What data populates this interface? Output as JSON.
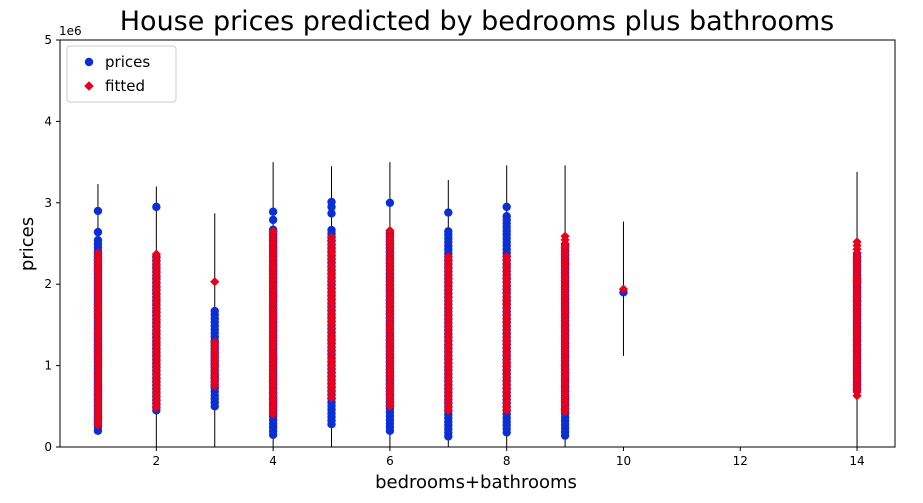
{
  "chart_data": {
    "type": "scatter",
    "title": "House prices predicted by bedrooms plus bathrooms",
    "xlabel": "bedrooms+bathrooms",
    "ylabel": "prices",
    "xlim": [
      0.35,
      14.65
    ],
    "ylim": [
      0,
      5000000
    ],
    "y_offset_label": "1e6",
    "x_ticks": [
      2,
      4,
      6,
      8,
      10,
      12,
      14
    ],
    "y_ticks": [
      0,
      1,
      2,
      3,
      4,
      5
    ],
    "y_tick_scale": 1000000,
    "grid": false,
    "legend": {
      "position": "top-left",
      "entries": [
        "prices",
        "fitted"
      ]
    },
    "colors": {
      "prices": "#0a2fd6",
      "fitted": "#e8001c",
      "lines": "#000000"
    },
    "vlines": [
      {
        "x": 1,
        "y0": 150000,
        "y1": 3230000
      },
      {
        "x": 2,
        "y0": 0,
        "y1": 3200000
      },
      {
        "x": 3,
        "y0": 0,
        "y1": 2870000
      },
      {
        "x": 4,
        "y0": 0,
        "y1": 3500000
      },
      {
        "x": 5,
        "y0": 0,
        "y1": 3450000
      },
      {
        "x": 6,
        "y0": 0,
        "y1": 3500000
      },
      {
        "x": 7,
        "y0": 0,
        "y1": 3280000
      },
      {
        "x": 8,
        "y0": 0,
        "y1": 3460000
      },
      {
        "x": 9,
        "y0": 0,
        "y1": 3460000
      },
      {
        "x": 10,
        "y0": 1120000,
        "y1": 2770000
      },
      {
        "x": 14,
        "y0": 0,
        "y1": 3380000
      }
    ],
    "series": [
      {
        "name": "prices",
        "marker": "circle",
        "clusters": [
          {
            "x": 1,
            "min": 200000,
            "max": 2550000,
            "extra": [
              2640000,
              2900000
            ]
          },
          {
            "x": 2,
            "min": 450000,
            "max": 2350000,
            "extra": [
              2950000
            ]
          },
          {
            "x": 3,
            "min": 500000,
            "max": 1680000,
            "extra": []
          },
          {
            "x": 4,
            "min": 150000,
            "max": 2700000,
            "extra": [
              2790000,
              2890000
            ]
          },
          {
            "x": 5,
            "min": 280000,
            "max": 2700000,
            "extra": [
              2870000,
              2950000,
              3010000
            ]
          },
          {
            "x": 6,
            "min": 200000,
            "max": 2650000,
            "extra": [
              3000000
            ]
          },
          {
            "x": 7,
            "min": 130000,
            "max": 2650000,
            "extra": [
              2880000
            ]
          },
          {
            "x": 8,
            "min": 180000,
            "max": 2850000,
            "extra": [
              2950000
            ]
          },
          {
            "x": 9,
            "min": 140000,
            "max": 2480000,
            "extra": []
          },
          {
            "x": 10,
            "min": 1900000,
            "max": 1900000,
            "extra": []
          },
          {
            "x": 14,
            "min": 700000,
            "max": 2400000,
            "extra": []
          }
        ]
      },
      {
        "name": "fitted",
        "marker": "diamond",
        "clusters": [
          {
            "x": 1,
            "min": 270000,
            "max": 2400000,
            "extra": []
          },
          {
            "x": 2,
            "min": 480000,
            "max": 2370000,
            "extra": []
          },
          {
            "x": 3,
            "min": 750000,
            "max": 1300000,
            "extra": [
              2030000
            ]
          },
          {
            "x": 4,
            "min": 400000,
            "max": 2680000,
            "extra": []
          },
          {
            "x": 5,
            "min": 600000,
            "max": 2600000,
            "extra": []
          },
          {
            "x": 6,
            "min": 500000,
            "max": 2680000,
            "extra": []
          },
          {
            "x": 7,
            "min": 450000,
            "max": 2350000,
            "extra": []
          },
          {
            "x": 8,
            "min": 450000,
            "max": 2350000,
            "extra": []
          },
          {
            "x": 9,
            "min": 430000,
            "max": 2630000,
            "extra": []
          },
          {
            "x": 10,
            "min": 1940000,
            "max": 1940000,
            "extra": []
          },
          {
            "x": 14,
            "min": 630000,
            "max": 2560000,
            "extra": [
              1800000,
              2050000
            ]
          }
        ]
      }
    ]
  }
}
